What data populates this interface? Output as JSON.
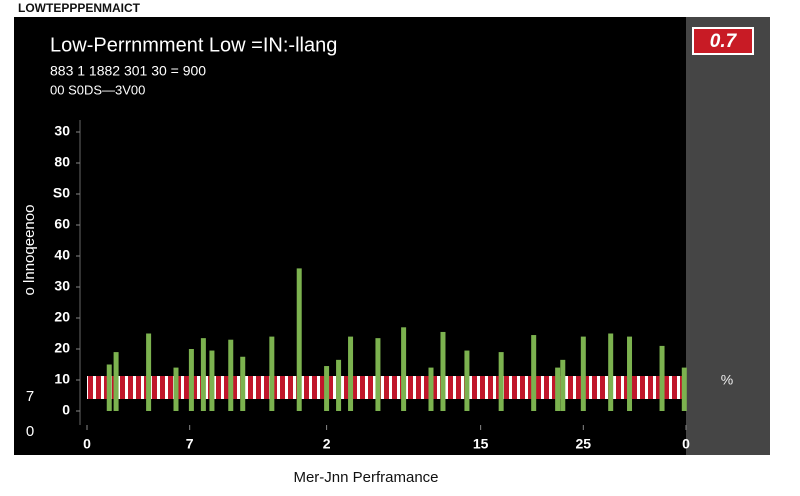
{
  "header": "LOWTEPPPENMAICT",
  "badge": "0.7",
  "side_unit": "%",
  "left_labels": [
    "7",
    "0"
  ],
  "chart_data": {
    "type": "bar",
    "title": "Low-Perrnmment Low =IN:-llang",
    "subtitle": [
      "883 1 1882 301 30 = 900",
      "00 S0DS—3V00"
    ],
    "x_label": "Mer-Jnn Perframance",
    "y_label": "o lnnoqeenoo",
    "color": "#7cb24f",
    "x": [
      1.3,
      1.7,
      3.6,
      5.2,
      6.1,
      6.8,
      7.3,
      8.4,
      9.1,
      10.8,
      12.4,
      14.0,
      14.7,
      15.4,
      17.0,
      18.5,
      20.1,
      20.8,
      22.2,
      24.2,
      26.1,
      27.5,
      27.8,
      29.0,
      30.6,
      31.7,
      33.6,
      34.9
    ],
    "values": [
      15,
      19,
      25,
      14,
      20,
      23.5,
      19.5,
      23,
      17.5,
      24,
      46,
      14.5,
      16.5,
      24,
      23.5,
      27,
      14,
      25.5,
      19.5,
      19,
      24.5,
      14,
      16.5,
      24,
      25,
      24,
      21,
      14
    ],
    "xlim": [
      0,
      35
    ],
    "xticks": [
      0,
      {
        "value": 6,
        "label": "7"
      },
      {
        "value": 14,
        "label": "2"
      },
      {
        "value": 23,
        "label": "15"
      },
      {
        "value": 29,
        "label": "25"
      },
      {
        "value": 35,
        "label": "0"
      }
    ],
    "ylim": [
      0,
      90
    ],
    "yticks": [
      0,
      10,
      20,
      {
        "value": 30,
        "label": "20"
      },
      {
        "value": 40,
        "label": "30"
      },
      {
        "value": 50,
        "label": "40"
      },
      60,
      {
        "value": 70,
        "label": "S0"
      },
      80,
      {
        "value": 90,
        "label": "30"
      }
    ],
    "grid": false
  }
}
